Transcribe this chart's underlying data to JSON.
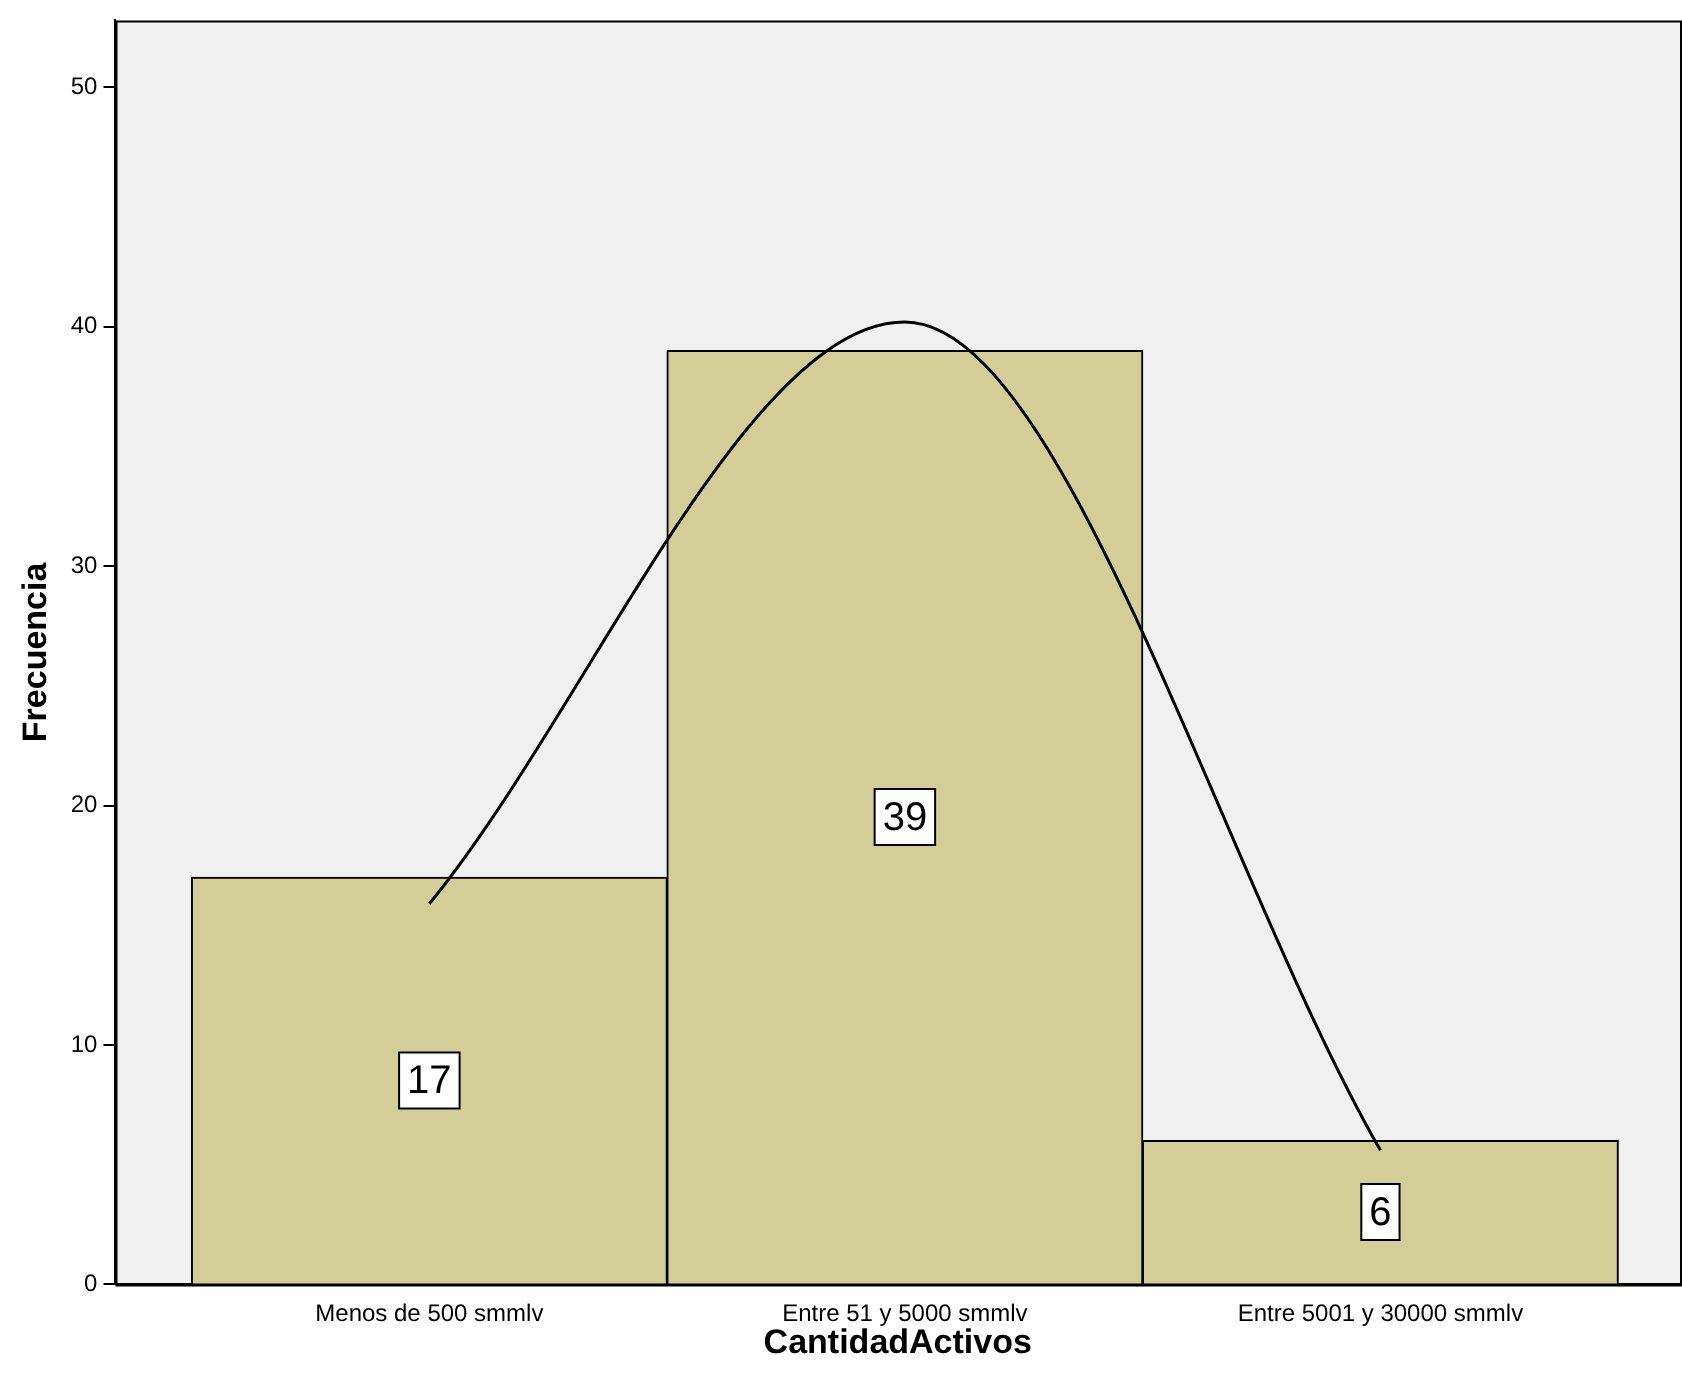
{
  "chart_data": {
    "type": "bar",
    "xlabel": "CantidadActivos",
    "ylabel": "Frecuencia",
    "categories": [
      "Menos de 500 smmlv",
      "Entre 51 y 5000 smmlv",
      "Entre 5001 y 30000 smmlv"
    ],
    "ylim": [
      0,
      52.8
    ],
    "yticks": [
      0,
      10,
      20,
      30,
      40,
      50
    ],
    "series": [
      {
        "color": "#d3ce98",
        "values": [
          17,
          39,
          6
        ],
        "value_labels": [
          "17",
          "39",
          "6"
        ]
      },
      {
        "type": "line",
        "color": "#000000",
        "values": [
          15.9,
          40.2,
          5.6
        ]
      }
    ],
    "grid": false,
    "legend": false
  }
}
